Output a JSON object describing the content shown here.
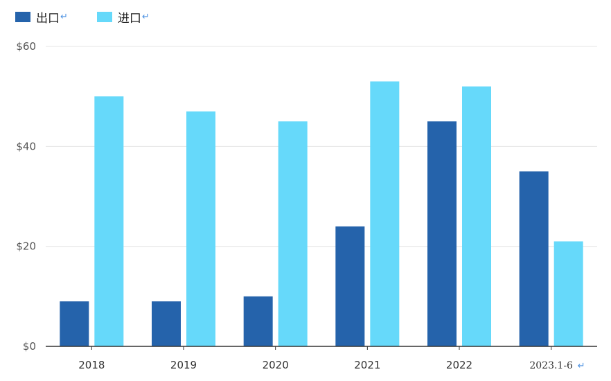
{
  "chart_data": {
    "type": "bar",
    "categories": [
      "2018",
      "2019",
      "2020",
      "2021",
      "2022",
      "2023.1-6"
    ],
    "series": [
      {
        "name": "出口",
        "values": [
          9,
          9,
          10,
          24,
          45,
          35
        ]
      },
      {
        "name": "进口",
        "values": [
          50,
          47,
          45,
          53,
          52,
          21
        ]
      }
    ],
    "yticks": [
      "$0",
      "$20",
      "$40",
      "$60"
    ],
    "ylim": [
      0,
      60
    ],
    "grid": true,
    "legend_position": "top-left",
    "colors": {
      "export": "#2563ab",
      "import": "#66d9fa"
    }
  }
}
